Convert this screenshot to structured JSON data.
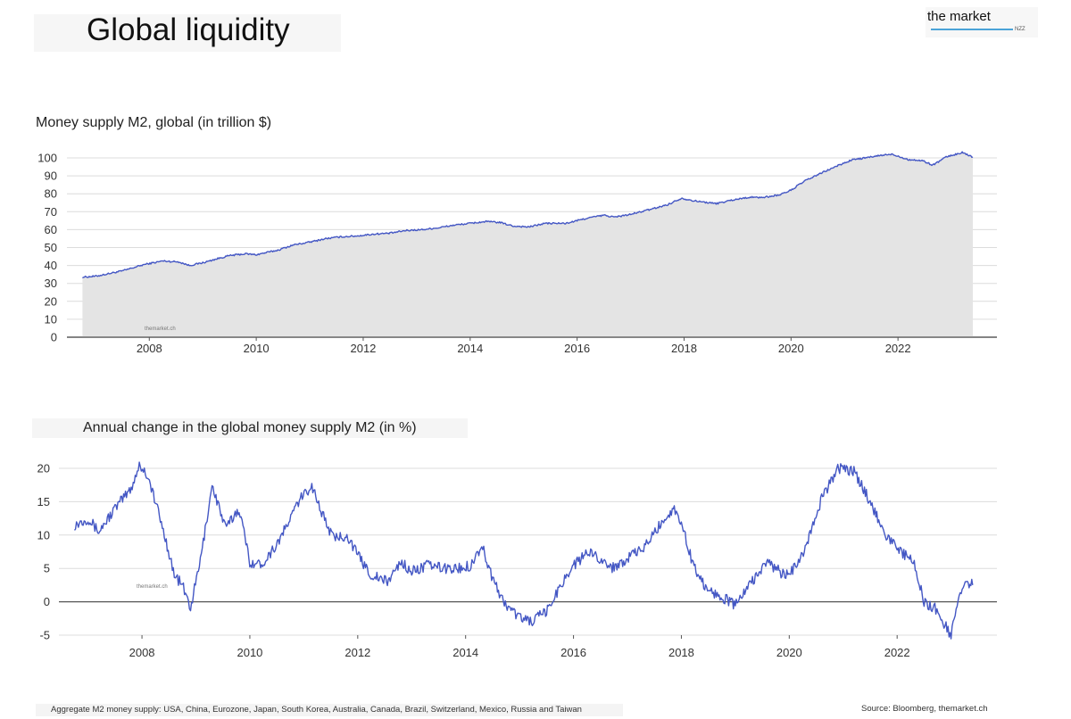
{
  "header": {
    "title": "Global liquidity",
    "logo_text": "the market",
    "logo_tag": "NZZ"
  },
  "footer": {
    "note": "Aggregate M2 money supply: USA, China, Eurozone, Japan, South Korea, Australia, Canada, Brazil, Switzerland, Mexico, Russia and Taiwan",
    "source": "Source: Bloomberg, themarket.ch"
  },
  "colors": {
    "line": "#4457c4",
    "area_fill": "#e4e4e4",
    "grid": "#dcdcdc",
    "axis": "#555555"
  },
  "chart_data": [
    {
      "type": "area",
      "title": "Money supply M2, global (in trillion $)",
      "watermark": "themarket.ch",
      "xlabel": "",
      "ylabel": "",
      "xlim": [
        2006.46,
        2023.85
      ],
      "ylim": [
        0,
        100
      ],
      "x_ticks": [
        "2008",
        "2010",
        "2012",
        "2014",
        "2016",
        "2018",
        "2020",
        "2022"
      ],
      "y_ticks": [
        "0",
        "10",
        "20",
        "30",
        "40",
        "50",
        "60",
        "70",
        "80",
        "90",
        "100"
      ],
      "grid": true,
      "series": [
        {
          "x": [
            2006.75,
            2007.0,
            2007.5,
            2007.9,
            2008.25,
            2008.55,
            2008.75,
            2009.0,
            2009.3,
            2009.5,
            2009.8,
            2010.0,
            2010.4,
            2010.7,
            2011.0,
            2011.3,
            2011.6,
            2011.9,
            2012.2,
            2012.5,
            2012.8,
            2013.1,
            2013.4,
            2013.7,
            2014.0,
            2014.3,
            2014.55,
            2014.8,
            2015.1,
            2015.4,
            2015.8,
            2016.2,
            2016.5,
            2016.7,
            2017.0,
            2017.4,
            2017.7,
            2017.95,
            2018.2,
            2018.6,
            2018.9,
            2019.2,
            2019.5,
            2019.8,
            2020.0,
            2020.25,
            2020.6,
            2020.9,
            2021.15,
            2021.4,
            2021.7,
            2021.9,
            2022.2,
            2022.45,
            2022.65,
            2022.9,
            2023.2,
            2023.4
          ],
          "y": [
            33.5,
            34,
            37,
            40.5,
            42.5,
            42,
            40,
            41.5,
            44,
            45.5,
            46.5,
            46,
            48.5,
            51.5,
            53,
            55,
            56,
            56.5,
            57.5,
            58,
            59.5,
            60,
            61,
            62.5,
            63.5,
            64.5,
            64,
            62,
            61.5,
            63.5,
            63.5,
            66.5,
            68,
            67,
            68.5,
            71.5,
            74,
            77.5,
            76,
            74.5,
            76.5,
            78,
            78,
            79.5,
            82,
            87,
            92,
            96,
            99,
            100,
            101.5,
            102,
            99,
            98.5,
            96,
            100.5,
            103,
            100.5
          ]
        }
      ]
    },
    {
      "type": "line",
      "title": "Annual change in the global money supply M2 (in %)",
      "watermark": "themarket.ch",
      "xlabel": "",
      "ylabel": "",
      "xlim": [
        2006.46,
        2023.85
      ],
      "ylim": [
        -5,
        20
      ],
      "x_ticks": [
        "2008",
        "2010",
        "2012",
        "2014",
        "2016",
        "2018",
        "2020",
        "2022"
      ],
      "y_ticks": [
        "-5",
        "0",
        "5",
        "10",
        "15",
        "20"
      ],
      "grid": true,
      "series": [
        {
          "x": [
            2006.75,
            2007.0,
            2007.2,
            2007.5,
            2007.8,
            2007.95,
            2008.1,
            2008.25,
            2008.45,
            2008.6,
            2008.75,
            2008.9,
            2009.1,
            2009.3,
            2009.55,
            2009.8,
            2010.0,
            2010.2,
            2010.4,
            2010.6,
            2010.9,
            2011.15,
            2011.35,
            2011.55,
            2011.8,
            2012.0,
            2012.25,
            2012.55,
            2012.8,
            2013.0,
            2013.3,
            2013.6,
            2013.9,
            2014.1,
            2014.3,
            2014.5,
            2014.7,
            2014.95,
            2015.2,
            2015.5,
            2015.8,
            2016.0,
            2016.3,
            2016.5,
            2016.7,
            2017.0,
            2017.3,
            2017.6,
            2017.85,
            2018.0,
            2018.2,
            2018.45,
            2018.7,
            2019.0,
            2019.3,
            2019.6,
            2019.9,
            2020.1,
            2020.35,
            2020.6,
            2020.9,
            2021.2,
            2021.5,
            2021.8,
            2022.0,
            2022.3,
            2022.5,
            2022.7,
            2022.85,
            2023.0,
            2023.15,
            2023.3,
            2023.4
          ],
          "y": [
            11.5,
            12.5,
            10.5,
            14,
            17,
            20.5,
            19,
            15,
            9,
            4,
            2.5,
            -1,
            7,
            17.5,
            11,
            14,
            6,
            5.5,
            7.5,
            10,
            15,
            17.5,
            13,
            9.5,
            10,
            7,
            4,
            3,
            6,
            4.5,
            5.5,
            5,
            5,
            5.5,
            8.5,
            3.5,
            0,
            -2,
            -3,
            -1.5,
            3,
            5.5,
            7.5,
            6.5,
            5,
            6.5,
            8,
            11.5,
            14,
            12,
            6,
            2,
            1,
            -0.5,
            3,
            6,
            4,
            5,
            9,
            15.5,
            20,
            19.5,
            15,
            10,
            8,
            6,
            0,
            -1,
            -3,
            -5,
            1,
            3,
            2.5
          ]
        }
      ]
    }
  ]
}
